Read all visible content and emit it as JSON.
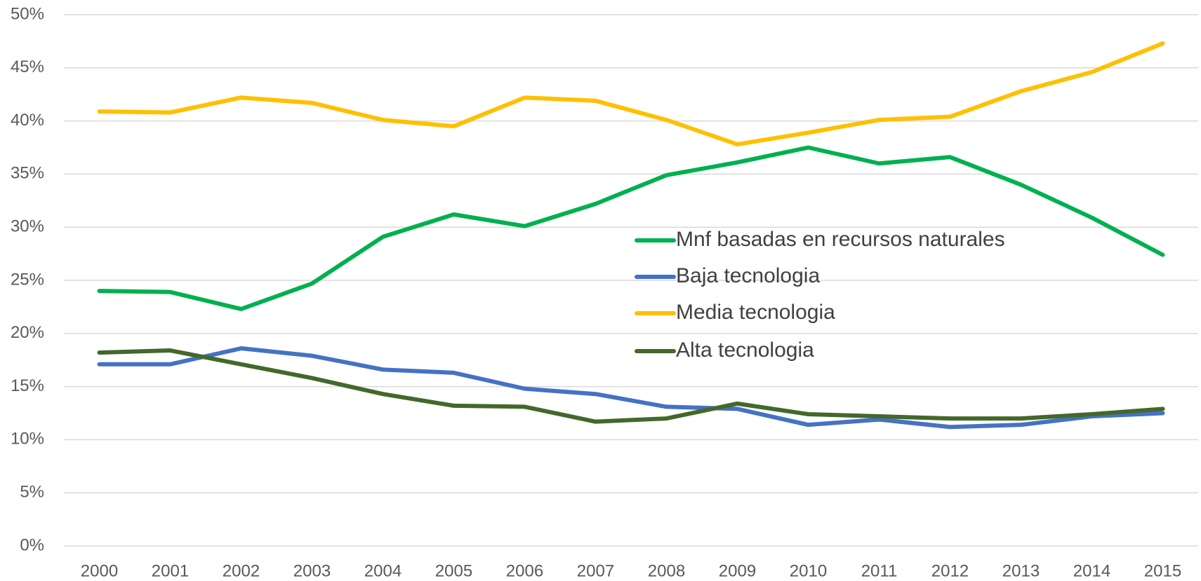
{
  "chart_data": {
    "type": "line",
    "categories": [
      "2000",
      "2001",
      "2002",
      "2003",
      "2004",
      "2005",
      "2006",
      "2007",
      "2008",
      "2009",
      "2010",
      "2011",
      "2012",
      "2013",
      "2014",
      "2015"
    ],
    "series": [
      {
        "name": "Mnf basadas en recursos naturales",
        "color": "#00b050",
        "values": [
          24.0,
          23.9,
          22.3,
          24.7,
          29.1,
          31.2,
          30.1,
          32.2,
          34.9,
          36.1,
          37.5,
          36.0,
          36.6,
          34.0,
          30.9,
          27.4
        ]
      },
      {
        "name": "Baja tecnologia",
        "color": "#4472c4",
        "values": [
          17.1,
          17.1,
          18.6,
          17.9,
          16.6,
          16.3,
          14.8,
          14.3,
          13.1,
          12.9,
          11.4,
          11.9,
          11.2,
          11.4,
          12.2,
          12.5
        ]
      },
      {
        "name": "Media tecnologia",
        "color": "#ffc000",
        "values": [
          40.9,
          40.8,
          42.2,
          41.7,
          40.1,
          39.5,
          42.2,
          41.9,
          40.1,
          37.8,
          38.9,
          40.1,
          40.4,
          42.8,
          44.6,
          47.3
        ]
      },
      {
        "name": "Alta tecnologia",
        "color": "#43682b",
        "values": [
          18.2,
          18.4,
          17.1,
          15.8,
          14.3,
          13.2,
          13.1,
          11.7,
          12.0,
          13.4,
          12.4,
          12.2,
          12.0,
          12.0,
          12.4,
          12.9
        ]
      }
    ],
    "ylim": [
      0,
      50
    ],
    "yticks": [
      {
        "value": 0,
        "label": "0%"
      },
      {
        "value": 5,
        "label": "5%"
      },
      {
        "value": 10,
        "label": "10%"
      },
      {
        "value": 15,
        "label": "15%"
      },
      {
        "value": 20,
        "label": "20%"
      },
      {
        "value": 25,
        "label": "25%"
      },
      {
        "value": 30,
        "label": "30%"
      },
      {
        "value": 35,
        "label": "35%"
      },
      {
        "value": 40,
        "label": "40%"
      },
      {
        "value": 45,
        "label": "45%"
      },
      {
        "value": 50,
        "label": "50%"
      }
    ],
    "grid": true,
    "legend": "center-right"
  }
}
